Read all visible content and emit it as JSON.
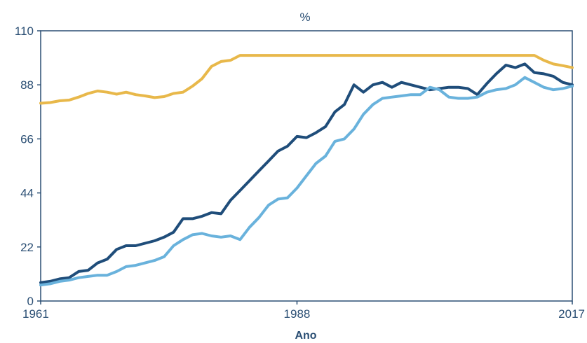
{
  "chart_data": {
    "type": "line",
    "title": "%",
    "xlabel": "Ano",
    "ylabel": "",
    "xlim": [
      1961,
      2017
    ],
    "ylim": [
      0,
      110
    ],
    "x_ticks": [
      1961,
      1988,
      2017
    ],
    "y_ticks": [
      0,
      22,
      44,
      66,
      88,
      110
    ],
    "grid": false,
    "legend": "none",
    "series": [
      {
        "color": "#e8b84a",
        "x": [
          1961,
          1962,
          1963,
          1964,
          1965,
          1966,
          1967,
          1968,
          1969,
          1970,
          1971,
          1972,
          1973,
          1974,
          1975,
          1976,
          1977,
          1978,
          1979,
          1980,
          1981,
          1982,
          1983,
          1984,
          1985,
          1986,
          1987,
          1988,
          1989,
          1990,
          1991,
          1992,
          1993,
          1994,
          1995,
          1996,
          1997,
          1998,
          1999,
          2000,
          2001,
          2002,
          2003,
          2004,
          2005,
          2006,
          2007,
          2008,
          2009,
          2010,
          2011,
          2012,
          2013,
          2014,
          2015,
          2016,
          2017
        ],
        "values": [
          80.5,
          80.8,
          81.5,
          81.8,
          83,
          84.5,
          85.5,
          85,
          84.2,
          85,
          84,
          83.5,
          82.8,
          83.2,
          84.5,
          85,
          87.5,
          90.5,
          95.5,
          97.5,
          98,
          100,
          100,
          100,
          100,
          100,
          100,
          100,
          100,
          100,
          100,
          100,
          100,
          100,
          100,
          100,
          100,
          100,
          100,
          100,
          100,
          100,
          100,
          100,
          100,
          100,
          100,
          100,
          100,
          100,
          100,
          100,
          100,
          98,
          96.5,
          95.8,
          95
        ]
      },
      {
        "color": "#1f4d7a",
        "x": [
          1961,
          1962,
          1963,
          1964,
          1965,
          1966,
          1967,
          1968,
          1969,
          1970,
          1971,
          1972,
          1973,
          1974,
          1975,
          1976,
          1977,
          1978,
          1979,
          1980,
          1981,
          1982,
          1983,
          1984,
          1985,
          1986,
          1987,
          1988,
          1989,
          1990,
          1991,
          1992,
          1993,
          1994,
          1995,
          1996,
          1997,
          1998,
          1999,
          2000,
          2001,
          2002,
          2003,
          2004,
          2005,
          2006,
          2007,
          2008,
          2009,
          2010,
          2011,
          2012,
          2013,
          2014,
          2015,
          2016,
          2017
        ],
        "values": [
          7.5,
          8,
          9,
          9.5,
          12,
          12.5,
          15.5,
          17,
          21,
          22.5,
          22.5,
          23.5,
          24.5,
          26,
          28,
          33.5,
          33.5,
          34.5,
          36,
          35.5,
          41,
          45,
          49,
          53,
          57,
          61,
          63,
          67,
          66.5,
          68.5,
          71,
          77,
          80,
          88,
          85,
          88,
          89,
          87,
          89,
          88,
          87,
          86,
          86.5,
          87,
          87,
          86.5,
          84,
          88.5,
          92.5,
          96,
          95,
          96.5,
          93,
          92.5,
          91.5,
          89,
          88
        ]
      },
      {
        "color": "#69b2dc",
        "x": [
          1961,
          1962,
          1963,
          1964,
          1965,
          1966,
          1967,
          1968,
          1969,
          1970,
          1971,
          1972,
          1973,
          1974,
          1975,
          1976,
          1977,
          1978,
          1979,
          1980,
          1981,
          1982,
          1983,
          1984,
          1985,
          1986,
          1987,
          1988,
          1989,
          1990,
          1991,
          1992,
          1993,
          1994,
          1995,
          1996,
          1997,
          1998,
          1999,
          2000,
          2001,
          2002,
          2003,
          2004,
          2005,
          2006,
          2007,
          2008,
          2009,
          2010,
          2011,
          2012,
          2013,
          2014,
          2015,
          2016,
          2017
        ],
        "values": [
          6.5,
          7,
          8,
          8.5,
          9.5,
          10,
          10.5,
          10.5,
          12,
          14,
          14.5,
          15.5,
          16.5,
          18,
          22.5,
          25,
          27,
          27.5,
          26.5,
          26,
          26.5,
          25,
          30,
          34,
          39,
          41.5,
          42,
          46,
          51,
          56,
          59,
          65,
          66,
          70,
          76,
          80,
          82.5,
          83,
          83.5,
          84,
          84,
          87,
          86,
          83,
          82.5,
          82.5,
          83,
          85,
          86,
          86.5,
          88,
          91,
          89,
          87,
          86,
          86.5,
          87.5
        ]
      }
    ]
  }
}
